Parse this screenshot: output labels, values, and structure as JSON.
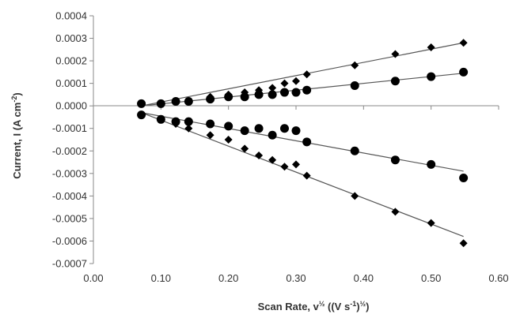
{
  "chart_data": {
    "type": "scatter",
    "title": "",
    "xlabel": {
      "main": "Scan Rate, v",
      "main_sup": "½",
      "units_open": " ((V s",
      "units_sup": "-1",
      "units_close": ")",
      "units_close_sup": "½",
      "units_end": ")"
    },
    "ylabel": {
      "main": "Current, I (A cm",
      "main_sup": "-2",
      "main_end": ")"
    },
    "xlim": [
      0,
      0.6
    ],
    "ylim": [
      -0.0007,
      0.0004
    ],
    "x_ticks": [
      "0.00",
      "0.10",
      "0.20",
      "0.30",
      "0.40",
      "0.50",
      "0.60"
    ],
    "y_ticks": [
      "0.0004",
      "0.0003",
      "0.0002",
      "0.0001",
      "0.0000",
      "-0.0001",
      "-0.0002",
      "-0.0003",
      "-0.0004",
      "-0.0005",
      "-0.0006",
      "-0.0007"
    ],
    "grid": false,
    "legend": "none",
    "marker_color": "#000000",
    "line_color": "#555555",
    "series": [
      {
        "marker": "diamond",
        "trend": [
          [
            0.071,
            0.0
          ],
          [
            0.548,
            0.00028
          ]
        ],
        "points": [
          [
            0.071,
            1e-05
          ],
          [
            0.1,
            1e-05
          ],
          [
            0.122,
            2e-05
          ],
          [
            0.141,
            2e-05
          ],
          [
            0.173,
            4e-05
          ],
          [
            0.2,
            5e-05
          ],
          [
            0.224,
            6e-05
          ],
          [
            0.245,
            7e-05
          ],
          [
            0.265,
            8e-05
          ],
          [
            0.283,
            0.0001
          ],
          [
            0.3,
            0.00011
          ],
          [
            0.316,
            0.00014
          ],
          [
            0.387,
            0.00018
          ],
          [
            0.447,
            0.00023
          ],
          [
            0.5,
            0.00026
          ],
          [
            0.548,
            0.00028
          ]
        ]
      },
      {
        "marker": "circle",
        "trend": [
          [
            0.071,
            0.0
          ],
          [
            0.548,
            0.000145
          ]
        ],
        "points": [
          [
            0.071,
            1e-05
          ],
          [
            0.1,
            1e-05
          ],
          [
            0.122,
            2e-05
          ],
          [
            0.141,
            2e-05
          ],
          [
            0.173,
            3e-05
          ],
          [
            0.2,
            4e-05
          ],
          [
            0.224,
            4e-05
          ],
          [
            0.245,
            5e-05
          ],
          [
            0.265,
            5e-05
          ],
          [
            0.283,
            6e-05
          ],
          [
            0.3,
            6e-05
          ],
          [
            0.316,
            7e-05
          ],
          [
            0.387,
            9e-05
          ],
          [
            0.447,
            0.00011
          ],
          [
            0.5,
            0.00013
          ],
          [
            0.548,
            0.00015
          ]
        ]
      },
      {
        "marker": "circle",
        "trend": [
          [
            0.071,
            -3e-05
          ],
          [
            0.548,
            -0.00029
          ]
        ],
        "points": [
          [
            0.071,
            -4e-05
          ],
          [
            0.1,
            -6e-05
          ],
          [
            0.122,
            -7e-05
          ],
          [
            0.141,
            -7e-05
          ],
          [
            0.173,
            -8e-05
          ],
          [
            0.2,
            -9e-05
          ],
          [
            0.224,
            -0.00011
          ],
          [
            0.245,
            -0.0001
          ],
          [
            0.265,
            -0.00013
          ],
          [
            0.283,
            -0.0001
          ],
          [
            0.3,
            -0.00011
          ],
          [
            0.316,
            -0.00016
          ],
          [
            0.387,
            -0.0002
          ],
          [
            0.447,
            -0.00024
          ],
          [
            0.5,
            -0.00026
          ],
          [
            0.548,
            -0.00032
          ]
        ]
      },
      {
        "marker": "diamond",
        "trend": [
          [
            0.071,
            -3e-05
          ],
          [
            0.548,
            -0.00058
          ]
        ],
        "points": [
          [
            0.071,
            -4e-05
          ],
          [
            0.1,
            -6e-05
          ],
          [
            0.122,
            -8e-05
          ],
          [
            0.141,
            -0.0001
          ],
          [
            0.173,
            -0.00013
          ],
          [
            0.2,
            -0.00015
          ],
          [
            0.224,
            -0.00019
          ],
          [
            0.245,
            -0.00022
          ],
          [
            0.265,
            -0.00024
          ],
          [
            0.283,
            -0.00027
          ],
          [
            0.3,
            -0.00026
          ],
          [
            0.316,
            -0.00031
          ],
          [
            0.387,
            -0.0004
          ],
          [
            0.447,
            -0.00047
          ],
          [
            0.5,
            -0.00052
          ],
          [
            0.548,
            -0.00061
          ]
        ]
      }
    ]
  }
}
